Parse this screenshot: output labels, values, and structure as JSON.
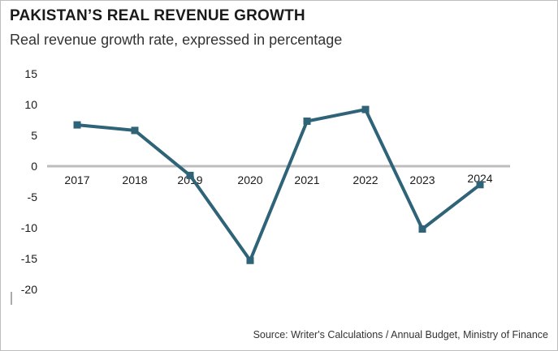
{
  "header": {
    "title": "PAKISTAN’S REAL REVENUE GROWTH",
    "subtitle": "Real revenue growth rate, expressed in percentage"
  },
  "footer": {
    "source": "Source: Writer's Calculations / Annual Budget, Ministry of Finance"
  },
  "colors": {
    "line": "#2e6378",
    "axis": "#bdbdbd",
    "text": "#1a1a1a"
  },
  "chart_data": {
    "type": "line",
    "categories": [
      "2017",
      "2018",
      "2019",
      "2020",
      "2021",
      "2022",
      "2023",
      "2024"
    ],
    "series": [
      {
        "values": [
          6.7,
          5.8,
          -1.5,
          -15.3,
          7.3,
          9.2,
          -10.2,
          -3.0
        ]
      }
    ],
    "yticks": [
      "15",
      "10",
      "5",
      "0",
      "-5",
      "-10",
      "-15",
      "-20"
    ],
    "ylim": [
      -20,
      15
    ],
    "grid": false,
    "legend": "none"
  }
}
